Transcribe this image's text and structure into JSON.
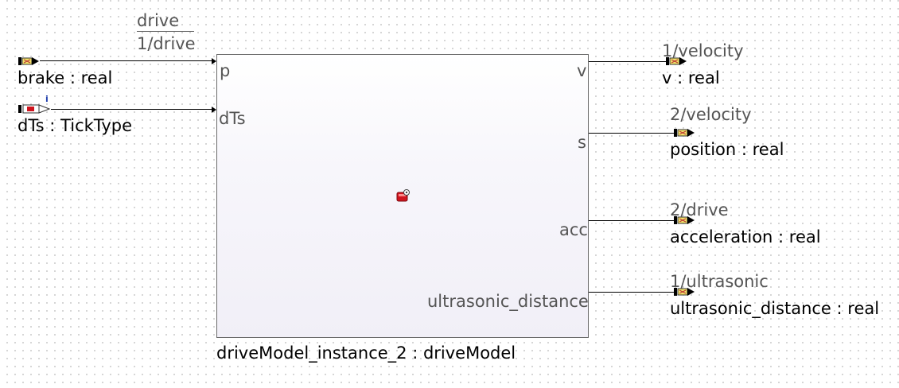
{
  "block": {
    "instance_label": "driveModel_instance_2 : driveModel",
    "ports_in": {
      "p": "p",
      "dTs": "dTs"
    },
    "ports_out": {
      "v": "v",
      "s": "s",
      "acc": "acc",
      "ultrasonic_distance": "ultrasonic_distance"
    }
  },
  "inputs": {
    "drive_header": "drive",
    "drive_sub": "1/drive",
    "brake": "brake : real",
    "dTs": "dTs : TickType",
    "dTs_info_marker": "i"
  },
  "outputs": {
    "v_port": "1/velocity",
    "v": "v : real",
    "position_port": "2/velocity",
    "position": "position : real",
    "acceleration_port": "2/drive",
    "acceleration": "acceleration : real",
    "ultrasonic_port": "1/ultrasonic",
    "ultrasonic_distance": "ultrasonic_distance : real"
  },
  "colors": {
    "port_red": "#d0141e",
    "port_yellow": "#f1e36a",
    "info_blue": "#1f3fae"
  }
}
